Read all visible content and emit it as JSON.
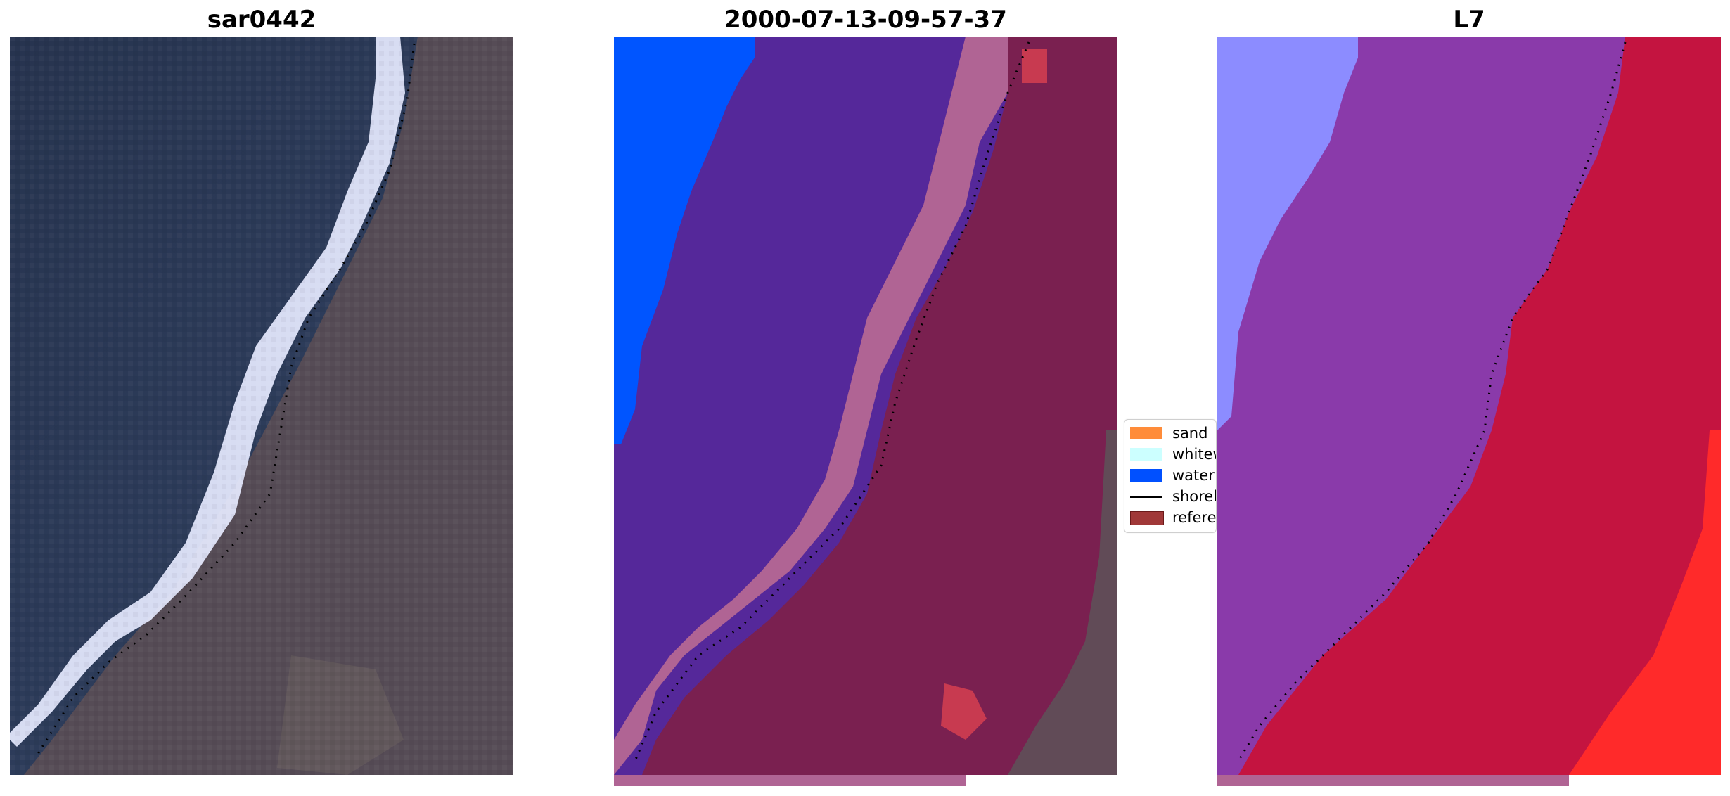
{
  "panels": [
    {
      "title": "sar0442"
    },
    {
      "title": "2000-07-13-09-57-37"
    },
    {
      "title": "L7"
    }
  ],
  "legend": {
    "items": [
      {
        "label": "sand",
        "color": "#ff8c3a",
        "kind": "patch"
      },
      {
        "label": "whitewater",
        "color": "#ccffff",
        "kind": "patch"
      },
      {
        "label": "water",
        "color": "#0050ff",
        "kind": "patch"
      },
      {
        "label": "shoreline",
        "color": "#000000",
        "kind": "line"
      },
      {
        "label": "reference shoreline buffer",
        "color": "#a03838",
        "kind": "patch"
      }
    ]
  },
  "colors": {
    "ocean_rgb": "#2a3a58",
    "land_rgb": "#5a5058",
    "surf_rgb": "#e8ecff",
    "water_class": "#0050ff",
    "sea_buffer": "#55289a",
    "land_buffer": "#7a2050",
    "sand_buffer": "#b06494",
    "index_low": "#8c8cff",
    "index_mid": "#8a3aaa",
    "index_high": "#c41440"
  }
}
